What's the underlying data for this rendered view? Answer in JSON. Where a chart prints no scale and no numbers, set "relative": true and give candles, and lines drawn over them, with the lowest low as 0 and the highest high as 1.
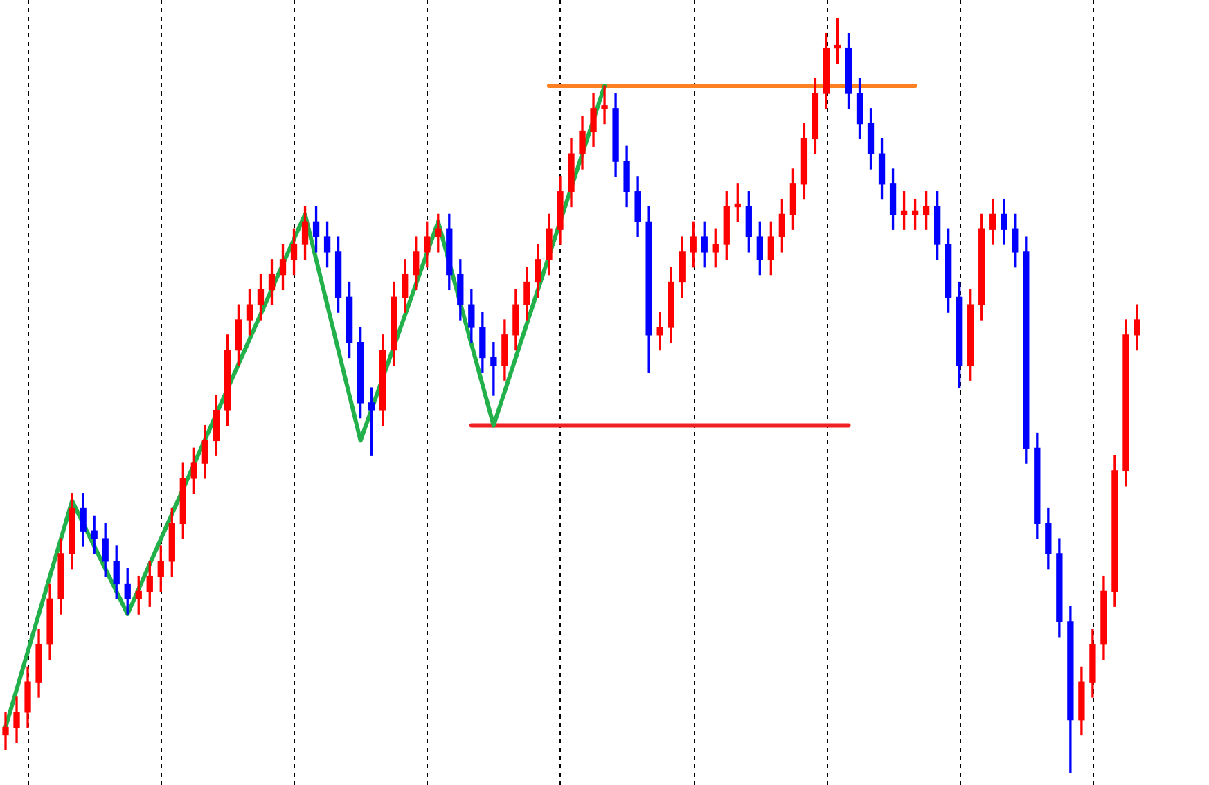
{
  "chart_data": {
    "type": "candlestick",
    "relative": true,
    "legend": false,
    "grid": "x",
    "categories": [
      null,
      null,
      null,
      null,
      null,
      null,
      null,
      null,
      null,
      null,
      null,
      null,
      null,
      null,
      null,
      null,
      null,
      null,
      null,
      null,
      null,
      null,
      null,
      null,
      null,
      null,
      null,
      null,
      null,
      null,
      null,
      null,
      null,
      null,
      null,
      null,
      null,
      null,
      null,
      null,
      null,
      null,
      null,
      null,
      null,
      null,
      null,
      null,
      null,
      null,
      null,
      null,
      null,
      null,
      null,
      null,
      null,
      null,
      null,
      null,
      null,
      null,
      null,
      null,
      null,
      null,
      null,
      null,
      null,
      null,
      null,
      null,
      null,
      null,
      null,
      null,
      null,
      null,
      null,
      null,
      null,
      null,
      null,
      null,
      null,
      null,
      null,
      null,
      null,
      null,
      null,
      null,
      null,
      null,
      null,
      null,
      null,
      null,
      null,
      null,
      null,
      null,
      null
    ],
    "ohlc": [
      [
        0.05,
        0.08,
        0.03,
        0.06
      ],
      [
        0.06,
        0.1,
        0.04,
        0.08
      ],
      [
        0.08,
        0.14,
        0.06,
        0.12
      ],
      [
        0.12,
        0.19,
        0.1,
        0.17
      ],
      [
        0.17,
        0.25,
        0.15,
        0.23
      ],
      [
        0.23,
        0.31,
        0.21,
        0.29
      ],
      [
        0.29,
        0.37,
        0.27,
        0.35
      ],
      [
        0.35,
        0.37,
        0.3,
        0.32
      ],
      [
        0.32,
        0.34,
        0.29,
        0.31
      ],
      [
        0.31,
        0.33,
        0.26,
        0.28
      ],
      [
        0.28,
        0.3,
        0.23,
        0.25
      ],
      [
        0.25,
        0.27,
        0.21,
        0.23
      ],
      [
        0.23,
        0.26,
        0.21,
        0.24
      ],
      [
        0.24,
        0.28,
        0.22,
        0.26
      ],
      [
        0.26,
        0.3,
        0.24,
        0.28
      ],
      [
        0.28,
        0.35,
        0.26,
        0.33
      ],
      [
        0.33,
        0.41,
        0.31,
        0.39
      ],
      [
        0.39,
        0.43,
        0.37,
        0.41
      ],
      [
        0.41,
        0.46,
        0.39,
        0.44
      ],
      [
        0.44,
        0.5,
        0.42,
        0.48
      ],
      [
        0.48,
        0.58,
        0.46,
        0.56
      ],
      [
        0.56,
        0.62,
        0.54,
        0.6
      ],
      [
        0.6,
        0.64,
        0.58,
        0.62
      ],
      [
        0.62,
        0.66,
        0.6,
        0.64
      ],
      [
        0.64,
        0.68,
        0.62,
        0.66
      ],
      [
        0.66,
        0.7,
        0.64,
        0.68
      ],
      [
        0.68,
        0.72,
        0.66,
        0.7
      ],
      [
        0.7,
        0.75,
        0.68,
        0.73
      ],
      [
        0.73,
        0.75,
        0.69,
        0.71
      ],
      [
        0.71,
        0.73,
        0.67,
        0.69
      ],
      [
        0.69,
        0.71,
        0.61,
        0.63
      ],
      [
        0.63,
        0.65,
        0.55,
        0.57
      ],
      [
        0.57,
        0.59,
        0.47,
        0.49
      ],
      [
        0.49,
        0.51,
        0.42,
        0.48
      ],
      [
        0.48,
        0.58,
        0.46,
        0.56
      ],
      [
        0.56,
        0.65,
        0.54,
        0.63
      ],
      [
        0.63,
        0.68,
        0.61,
        0.66
      ],
      [
        0.66,
        0.71,
        0.64,
        0.69
      ],
      [
        0.69,
        0.73,
        0.67,
        0.71
      ],
      [
        0.71,
        0.74,
        0.69,
        0.72
      ],
      [
        0.72,
        0.74,
        0.64,
        0.66
      ],
      [
        0.66,
        0.68,
        0.6,
        0.62
      ],
      [
        0.62,
        0.64,
        0.57,
        0.59
      ],
      [
        0.59,
        0.61,
        0.53,
        0.55
      ],
      [
        0.55,
        0.57,
        0.5,
        0.54
      ],
      [
        0.54,
        0.6,
        0.52,
        0.58
      ],
      [
        0.58,
        0.64,
        0.56,
        0.62
      ],
      [
        0.62,
        0.67,
        0.6,
        0.65
      ],
      [
        0.65,
        0.7,
        0.63,
        0.68
      ],
      [
        0.68,
        0.74,
        0.66,
        0.72
      ],
      [
        0.72,
        0.79,
        0.7,
        0.77
      ],
      [
        0.77,
        0.84,
        0.75,
        0.82
      ],
      [
        0.82,
        0.87,
        0.8,
        0.85
      ],
      [
        0.85,
        0.9,
        0.83,
        0.88
      ],
      [
        0.88,
        0.91,
        0.86,
        0.88
      ],
      [
        0.88,
        0.9,
        0.79,
        0.81
      ],
      [
        0.81,
        0.83,
        0.75,
        0.77
      ],
      [
        0.77,
        0.79,
        0.71,
        0.73
      ],
      [
        0.73,
        0.75,
        0.53,
        0.58
      ],
      [
        0.58,
        0.61,
        0.56,
        0.59
      ],
      [
        0.59,
        0.67,
        0.57,
        0.65
      ],
      [
        0.65,
        0.71,
        0.63,
        0.69
      ],
      [
        0.69,
        0.73,
        0.67,
        0.71
      ],
      [
        0.71,
        0.73,
        0.67,
        0.69
      ],
      [
        0.69,
        0.72,
        0.67,
        0.7
      ],
      [
        0.7,
        0.77,
        0.68,
        0.75
      ],
      [
        0.75,
        0.78,
        0.73,
        0.75
      ],
      [
        0.75,
        0.77,
        0.69,
        0.71
      ],
      [
        0.71,
        0.73,
        0.66,
        0.68
      ],
      [
        0.68,
        0.73,
        0.66,
        0.71
      ],
      [
        0.71,
        0.76,
        0.69,
        0.74
      ],
      [
        0.74,
        0.8,
        0.72,
        0.78
      ],
      [
        0.78,
        0.86,
        0.76,
        0.84
      ],
      [
        0.84,
        0.92,
        0.82,
        0.9
      ],
      [
        0.9,
        0.98,
        0.88,
        0.96
      ],
      [
        0.96,
        1,
        0.94,
        0.96
      ],
      [
        0.96,
        0.98,
        0.88,
        0.9
      ],
      [
        0.9,
        0.92,
        0.84,
        0.86
      ],
      [
        0.86,
        0.88,
        0.8,
        0.82
      ],
      [
        0.82,
        0.84,
        0.76,
        0.78
      ],
      [
        0.78,
        0.8,
        0.72,
        0.74
      ],
      [
        0.74,
        0.77,
        0.72,
        0.74
      ],
      [
        0.74,
        0.76,
        0.72,
        0.74
      ],
      [
        0.74,
        0.77,
        0.72,
        0.75
      ],
      [
        0.75,
        0.77,
        0.68,
        0.7
      ],
      [
        0.7,
        0.72,
        0.61,
        0.63
      ],
      [
        0.63,
        0.65,
        0.51,
        0.54
      ],
      [
        0.54,
        0.64,
        0.52,
        0.62
      ],
      [
        0.62,
        0.74,
        0.6,
        0.72
      ],
      [
        0.72,
        0.76,
        0.7,
        0.74
      ],
      [
        0.74,
        0.76,
        0.7,
        0.72
      ],
      [
        0.72,
        0.74,
        0.67,
        0.69
      ],
      [
        0.69,
        0.71,
        0.41,
        0.43
      ],
      [
        0.43,
        0.45,
        0.31,
        0.33
      ],
      [
        0.33,
        0.35,
        0.27,
        0.29
      ],
      [
        0.29,
        0.31,
        0.18,
        0.2
      ],
      [
        0.2,
        0.22,
        0,
        0.07
      ],
      [
        0.07,
        0.14,
        0.05,
        0.12
      ],
      [
        0.12,
        0.19,
        0.1,
        0.17
      ],
      [
        0.17,
        0.26,
        0.15,
        0.24
      ],
      [
        0.24,
        0.42,
        0.22,
        0.4
      ],
      [
        0.4,
        0.6,
        0.38,
        0.58
      ],
      [
        0.58,
        0.62,
        0.56,
        0.6
      ]
    ],
    "colors": [
      "#ff0000",
      "#ff0000",
      "#ff0000",
      "#ff0000",
      "#ff0000",
      "#ff0000",
      "#ff0000",
      "#0000ff",
      "#0000ff",
      "#0000ff",
      "#0000ff",
      "#0000ff",
      "#ff0000",
      "#ff0000",
      "#ff0000",
      "#ff0000",
      "#ff0000",
      "#ff0000",
      "#ff0000",
      "#ff0000",
      "#ff0000",
      "#ff0000",
      "#ff0000",
      "#ff0000",
      "#ff0000",
      "#ff0000",
      "#ff0000",
      "#ff0000",
      "#0000ff",
      "#0000ff",
      "#0000ff",
      "#0000ff",
      "#0000ff",
      "#0000ff",
      "#ff0000",
      "#ff0000",
      "#ff0000",
      "#ff0000",
      "#ff0000",
      "#ff0000",
      "#0000ff",
      "#0000ff",
      "#0000ff",
      "#0000ff",
      "#0000ff",
      "#ff0000",
      "#ff0000",
      "#ff0000",
      "#ff0000",
      "#ff0000",
      "#ff0000",
      "#ff0000",
      "#ff0000",
      "#ff0000",
      "#ff0000",
      "#0000ff",
      "#0000ff",
      "#0000ff",
      "#0000ff",
      "#ff0000",
      "#ff0000",
      "#ff0000",
      "#ff0000",
      "#0000ff",
      "#ff0000",
      "#ff0000",
      "#ff0000",
      "#0000ff",
      "#0000ff",
      "#ff0000",
      "#ff0000",
      "#ff0000",
      "#ff0000",
      "#ff0000",
      "#ff0000",
      "#ff0000",
      "#0000ff",
      "#0000ff",
      "#0000ff",
      "#0000ff",
      "#0000ff",
      "#ff0000",
      "#ff0000",
      "#ff0000",
      "#0000ff",
      "#0000ff",
      "#0000ff",
      "#ff0000",
      "#ff0000",
      "#ff0000",
      "#0000ff",
      "#0000ff",
      "#0000ff",
      "#0000ff",
      "#0000ff",
      "#0000ff",
      "#0000ff",
      "#ff0000",
      "#ff0000",
      "#ff0000",
      "#ff0000",
      "#ff0000",
      "#ff0000"
    ],
    "series": [
      {
        "type": "line",
        "color": "#22b04b",
        "values": [
          0.06,
          null,
          null,
          null,
          null,
          null,
          0.36,
          null,
          null,
          null,
          null,
          0.21,
          null,
          null,
          null,
          null,
          null,
          null,
          null,
          null,
          null,
          null,
          null,
          null,
          null,
          null,
          null,
          0.74,
          null,
          null,
          null,
          null,
          0.44,
          null,
          null,
          null,
          null,
          null,
          null,
          0.73,
          null,
          null,
          null,
          null,
          0.46,
          null,
          null,
          null,
          null,
          null,
          null,
          null,
          null,
          null,
          0.91,
          null,
          null,
          null,
          null,
          null,
          null,
          null,
          null,
          null,
          null,
          null,
          null,
          null,
          null,
          null,
          null,
          null,
          null,
          null,
          null,
          null,
          null,
          null,
          null,
          null,
          null,
          null,
          null,
          null,
          null,
          null,
          null,
          null,
          null,
          null,
          null,
          null,
          null,
          null,
          null,
          null,
          null,
          null,
          null,
          null,
          null,
          null,
          null
        ]
      },
      {
        "type": "line",
        "color": "#ff8020",
        "values": [
          null,
          null,
          null,
          null,
          null,
          null,
          null,
          null,
          null,
          null,
          null,
          null,
          null,
          null,
          null,
          null,
          null,
          null,
          null,
          null,
          null,
          null,
          null,
          null,
          null,
          null,
          null,
          null,
          null,
          null,
          null,
          null,
          null,
          null,
          null,
          null,
          null,
          null,
          null,
          null,
          null,
          null,
          null,
          null,
          null,
          null,
          null,
          null,
          null,
          0.91,
          null,
          null,
          null,
          null,
          null,
          null,
          null,
          null,
          null,
          null,
          null,
          null,
          null,
          null,
          null,
          null,
          null,
          null,
          null,
          null,
          null,
          null,
          null,
          null,
          null,
          null,
          null,
          null,
          null,
          null,
          null,
          null,
          0.91,
          null,
          null,
          null,
          null,
          null,
          null,
          null,
          null,
          null,
          null,
          null,
          null,
          null,
          null,
          null,
          null,
          null,
          null,
          null,
          null
        ]
      },
      {
        "type": "line",
        "color": "#ee2020",
        "values": [
          null,
          null,
          null,
          null,
          null,
          null,
          null,
          null,
          null,
          null,
          null,
          null,
          null,
          null,
          null,
          null,
          null,
          null,
          null,
          null,
          null,
          null,
          null,
          null,
          null,
          null,
          null,
          null,
          null,
          null,
          null,
          null,
          null,
          null,
          null,
          null,
          null,
          null,
          null,
          null,
          null,
          null,
          0.46,
          null,
          null,
          null,
          null,
          null,
          null,
          null,
          null,
          null,
          null,
          null,
          null,
          null,
          null,
          null,
          null,
          null,
          null,
          null,
          null,
          null,
          null,
          null,
          null,
          null,
          null,
          null,
          null,
          null,
          null,
          null,
          null,
          null,
          0.46,
          null,
          null,
          null,
          null,
          null,
          null,
          null,
          null,
          null,
          null,
          null,
          null,
          null,
          null,
          null,
          null,
          null,
          null,
          null,
          null,
          null,
          null,
          null,
          null,
          null,
          null
        ]
      }
    ]
  }
}
